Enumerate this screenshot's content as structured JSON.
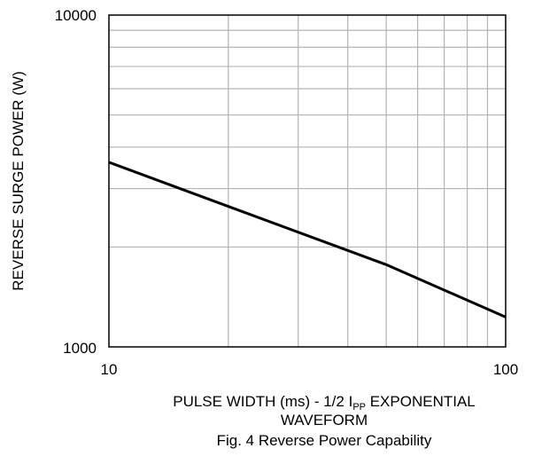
{
  "chart_data": {
    "type": "line",
    "caption": "Fig. 4 Reverse Power Capability",
    "xlabel": {
      "main": "PULSE WIDTH (ms) - 1/2 I",
      "subscript": "PP",
      "rest": " EXPONENTIAL",
      "line2": "WAVEFORM"
    },
    "ylabel": "REVERSE SURGE POWER (W)",
    "xscale": "log",
    "yscale": "log",
    "xlim": [
      10,
      100
    ],
    "ylim": [
      1000,
      10000
    ],
    "xticks": [
      "10",
      "100"
    ],
    "yticks": [
      "1000",
      "10000"
    ],
    "grid": true,
    "series": [
      {
        "x": [
          10,
          20,
          50,
          100
        ],
        "y": [
          3600,
          2650,
          1770,
          1230
        ]
      }
    ]
  },
  "colors": {
    "line": "#000000",
    "grid": "#b3b3b3",
    "axis": "#000000"
  }
}
